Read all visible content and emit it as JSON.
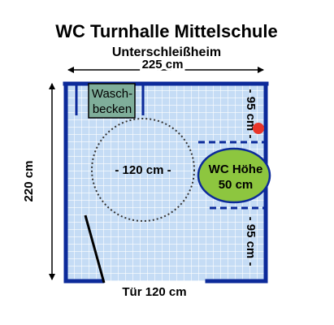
{
  "title": "WC Turnhalle Mittelschule",
  "subtitle": "Unterschleißheim",
  "width_label": "225 cm",
  "height_label": "220 cm",
  "door_label": "Tür 120 cm",
  "sink_label_line1": "Wasch-",
  "sink_label_line2": "becken",
  "turning_circle_label": "- 120 cm -",
  "wc_label_line1": "WC Höhe",
  "wc_label_line2": "50 cm",
  "upper_clearance_label": "- 95 cm -",
  "lower_clearance_label": "- 95 cm -",
  "colors": {
    "floor": "#c5dcf5",
    "grid": "#ffffff",
    "wall": "#0c2a9a",
    "sink_fill": "#7fae9a",
    "wc_fill": "#8dc63f",
    "flush_button": "#e8352a"
  }
}
